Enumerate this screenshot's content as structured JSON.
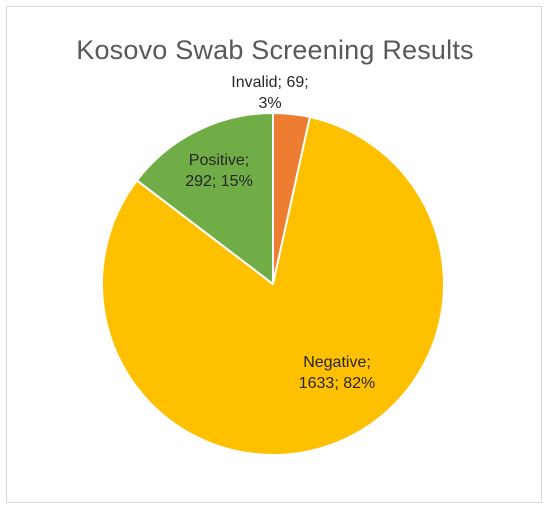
{
  "chart_data": {
    "type": "pie",
    "title": "Kosovo Swab Screening Results",
    "slices": [
      {
        "name": "Invalid",
        "value": 69,
        "percent": "3%",
        "color": "#ED7D31",
        "label_lines": [
          "Invalid; 69;",
          "3%"
        ]
      },
      {
        "name": "Negative",
        "value": 1633,
        "percent": "82%",
        "color": "#FFC000",
        "label_lines": [
          "Negative;",
          "1633; 82%"
        ]
      },
      {
        "name": "Positive",
        "value": 292,
        "percent": "15%",
        "color": "#70AD47",
        "label_lines": [
          "Positive;",
          "292; 15%"
        ]
      }
    ]
  }
}
